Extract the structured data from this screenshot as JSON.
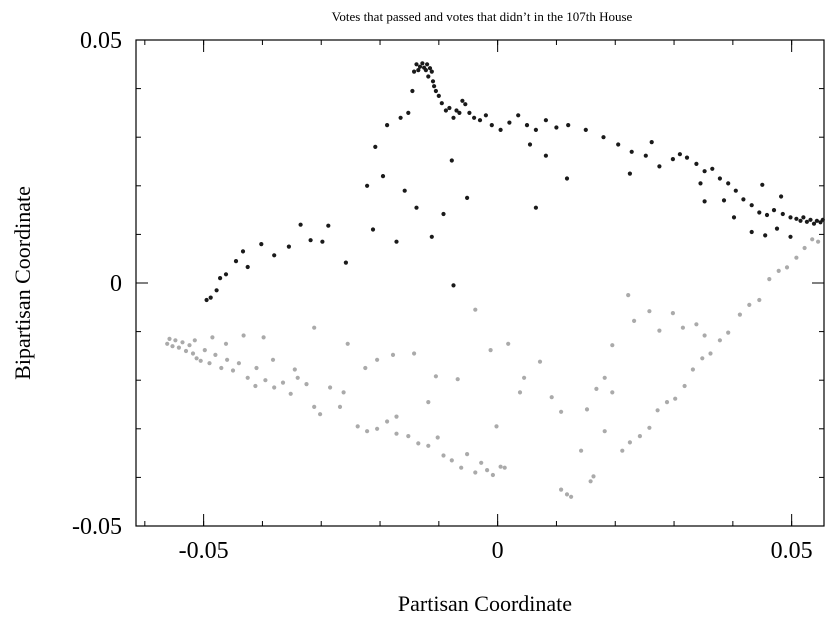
{
  "chart_data": {
    "type": "scatter",
    "title": "Votes that passed and votes that didn’t in the 107th House",
    "xlabel": "Partisan Coordinate",
    "ylabel": "Bipartisan Coordinate",
    "xlim": [
      -0.0615,
      0.0555
    ],
    "ylim": [
      -0.05,
      0.05
    ],
    "x_ticks": [
      -0.05,
      0,
      0.05
    ],
    "x_tick_labels": [
      "-0.05",
      "0",
      "0.05"
    ],
    "y_ticks": [
      -0.05,
      0,
      0.05
    ],
    "y_tick_labels": [
      "-0.05",
      "0",
      "0.05"
    ],
    "grid": false,
    "legend": false,
    "series": [
      {
        "color": "#1a1a1a",
        "points": [
          [
            -0.0495,
            -0.0035
          ],
          [
            -0.0488,
            -0.003
          ],
          [
            -0.0478,
            -0.0015
          ],
          [
            -0.0472,
            0.001
          ],
          [
            -0.0462,
            0.0018
          ],
          [
            -0.0445,
            0.0045
          ],
          [
            -0.0433,
            0.0065
          ],
          [
            -0.0425,
            0.0033
          ],
          [
            -0.0402,
            0.008
          ],
          [
            -0.038,
            0.0057
          ],
          [
            -0.0355,
            0.0075
          ],
          [
            -0.0335,
            0.012
          ],
          [
            -0.0318,
            0.0088
          ],
          [
            -0.0298,
            0.0085
          ],
          [
            -0.0288,
            0.0118
          ],
          [
            -0.0258,
            0.0042
          ],
          [
            -0.0222,
            0.02
          ],
          [
            -0.0208,
            0.028
          ],
          [
            -0.0195,
            0.022
          ],
          [
            -0.0188,
            0.0325
          ],
          [
            -0.0165,
            0.034
          ],
          [
            -0.0152,
            0.035
          ],
          [
            -0.0145,
            0.0395
          ],
          [
            -0.0142,
            0.0435
          ],
          [
            -0.0138,
            0.045
          ],
          [
            -0.0135,
            0.0438
          ],
          [
            -0.0132,
            0.0445
          ],
          [
            -0.0128,
            0.0452
          ],
          [
            -0.0125,
            0.0443
          ],
          [
            -0.0122,
            0.0438
          ],
          [
            -0.012,
            0.045
          ],
          [
            -0.0118,
            0.0425
          ],
          [
            -0.0115,
            0.0442
          ],
          [
            -0.0112,
            0.0435
          ],
          [
            -0.011,
            0.0415
          ],
          [
            -0.0108,
            0.0405
          ],
          [
            -0.0105,
            0.0395
          ],
          [
            -0.01,
            0.0385
          ],
          [
            -0.0095,
            0.037
          ],
          [
            -0.0088,
            0.0355
          ],
          [
            -0.0082,
            0.036
          ],
          [
            -0.0075,
            0.034
          ],
          [
            -0.007,
            0.0355
          ],
          [
            -0.0065,
            0.035
          ],
          [
            -0.006,
            0.0375
          ],
          [
            -0.0055,
            0.0368
          ],
          [
            -0.0048,
            0.035
          ],
          [
            -0.004,
            0.034
          ],
          [
            -0.003,
            0.0335
          ],
          [
            -0.002,
            0.0345
          ],
          [
            -0.001,
            0.0325
          ],
          [
            0.0005,
            0.0315
          ],
          [
            0.002,
            0.033
          ],
          [
            0.0035,
            0.0345
          ],
          [
            0.005,
            0.0325
          ],
          [
            0.0065,
            0.0315
          ],
          [
            0.0082,
            0.0335
          ],
          [
            0.01,
            0.032
          ],
          [
            0.012,
            0.0325
          ],
          [
            0.015,
            0.0315
          ],
          [
            0.018,
            0.03
          ],
          [
            0.0205,
            0.0285
          ],
          [
            0.0228,
            0.027
          ],
          [
            0.0252,
            0.0262
          ],
          [
            0.0275,
            0.024
          ],
          [
            0.0298,
            0.0255
          ],
          [
            0.031,
            0.0265
          ],
          [
            0.0322,
            0.0258
          ],
          [
            0.0338,
            0.0245
          ],
          [
            0.0352,
            0.023
          ],
          [
            0.0365,
            0.0235
          ],
          [
            0.0378,
            0.0215
          ],
          [
            0.0392,
            0.0205
          ],
          [
            0.0405,
            0.019
          ],
          [
            0.0418,
            0.0172
          ],
          [
            0.0432,
            0.016
          ],
          [
            0.0445,
            0.0145
          ],
          [
            0.0458,
            0.014
          ],
          [
            0.047,
            0.015
          ],
          [
            0.0485,
            0.0142
          ],
          [
            0.0498,
            0.0135
          ],
          [
            0.0508,
            0.0132
          ],
          [
            0.0515,
            0.0128
          ],
          [
            0.052,
            0.0135
          ],
          [
            0.0526,
            0.0126
          ],
          [
            0.0532,
            0.013
          ],
          [
            0.0538,
            0.0122
          ],
          [
            0.0543,
            0.0128
          ],
          [
            0.0549,
            0.0125
          ],
          [
            0.0553,
            0.013
          ],
          [
            -0.0212,
            0.011
          ],
          [
            -0.0172,
            0.0085
          ],
          [
            -0.0138,
            0.0155
          ],
          [
            -0.0112,
            0.0095
          ],
          [
            -0.0052,
            0.0175
          ],
          [
            -0.0078,
            0.0252
          ],
          [
            -0.0092,
            0.0142
          ],
          [
            -0.0158,
            0.019
          ],
          [
            -0.0075,
            -0.0005
          ],
          [
            0.0065,
            0.0155
          ],
          [
            0.0118,
            0.0215
          ],
          [
            0.0055,
            0.0285
          ],
          [
            0.0082,
            0.0262
          ],
          [
            0.0225,
            0.0225
          ],
          [
            0.0262,
            0.029
          ],
          [
            0.0345,
            0.0205
          ],
          [
            0.0385,
            0.017
          ],
          [
            0.0402,
            0.0135
          ],
          [
            0.0432,
            0.0105
          ],
          [
            0.0455,
            0.0098
          ],
          [
            0.0475,
            0.0112
          ],
          [
            0.0498,
            0.0095
          ],
          [
            0.0482,
            0.0178
          ],
          [
            0.045,
            0.0202
          ],
          [
            0.0352,
            0.0168
          ]
        ]
      },
      {
        "color": "#aaaaaa",
        "points": [
          [
            -0.0562,
            -0.0125
          ],
          [
            -0.0558,
            -0.0115
          ],
          [
            -0.0553,
            -0.013
          ],
          [
            -0.0548,
            -0.0118
          ],
          [
            -0.0542,
            -0.0133
          ],
          [
            -0.0536,
            -0.0122
          ],
          [
            -0.053,
            -0.014
          ],
          [
            -0.0524,
            -0.0128
          ],
          [
            -0.0518,
            -0.0145
          ],
          [
            -0.0512,
            -0.0155
          ],
          [
            -0.0505,
            -0.016
          ],
          [
            -0.0498,
            -0.0138
          ],
          [
            -0.049,
            -0.0165
          ],
          [
            -0.048,
            -0.0148
          ],
          [
            -0.047,
            -0.0175
          ],
          [
            -0.046,
            -0.0158
          ],
          [
            -0.045,
            -0.018
          ],
          [
            -0.044,
            -0.0165
          ],
          [
            -0.0425,
            -0.0195
          ],
          [
            -0.041,
            -0.0175
          ],
          [
            -0.0395,
            -0.02
          ],
          [
            -0.038,
            -0.0215
          ],
          [
            -0.0365,
            -0.0205
          ],
          [
            -0.0352,
            -0.0228
          ],
          [
            -0.034,
            -0.0195
          ],
          [
            -0.0325,
            -0.0208
          ],
          [
            -0.0312,
            -0.0255
          ],
          [
            -0.0302,
            -0.027
          ],
          [
            -0.0285,
            -0.0215
          ],
          [
            -0.0262,
            -0.0225
          ],
          [
            -0.0238,
            -0.0295
          ],
          [
            -0.0222,
            -0.0305
          ],
          [
            -0.0205,
            -0.03
          ],
          [
            -0.0188,
            -0.0285
          ],
          [
            -0.0172,
            -0.031
          ],
          [
            -0.0152,
            -0.0315
          ],
          [
            -0.0135,
            -0.033
          ],
          [
            -0.0118,
            -0.0335
          ],
          [
            -0.0102,
            -0.0318
          ],
          [
            -0.0092,
            -0.0355
          ],
          [
            -0.0078,
            -0.0365
          ],
          [
            -0.0062,
            -0.038
          ],
          [
            -0.0052,
            -0.0352
          ],
          [
            -0.0038,
            -0.039
          ],
          [
            -0.0028,
            -0.037
          ],
          [
            -0.0018,
            -0.0385
          ],
          [
            -0.0008,
            -0.0395
          ],
          [
            0.0005,
            -0.0378
          ],
          [
            0.0012,
            -0.038
          ],
          [
            0.0108,
            -0.0425
          ],
          [
            0.0118,
            -0.0435
          ],
          [
            0.0125,
            -0.044
          ],
          [
            0.0158,
            -0.0408
          ],
          [
            0.0163,
            -0.0398
          ],
          [
            0.0152,
            -0.026
          ],
          [
            0.0168,
            -0.0218
          ],
          [
            0.0182,
            -0.0195
          ],
          [
            0.0195,
            -0.0225
          ],
          [
            0.0212,
            -0.0345
          ],
          [
            0.0225,
            -0.0328
          ],
          [
            0.0242,
            -0.0315
          ],
          [
            0.0258,
            -0.0298
          ],
          [
            0.0272,
            -0.0262
          ],
          [
            0.0288,
            -0.0245
          ],
          [
            0.0302,
            -0.0238
          ],
          [
            0.0318,
            -0.0212
          ],
          [
            0.0332,
            -0.0178
          ],
          [
            0.0348,
            -0.0155
          ],
          [
            0.0362,
            -0.0145
          ],
          [
            0.0378,
            -0.0118
          ],
          [
            0.0392,
            -0.0102
          ],
          [
            0.0412,
            -0.0065
          ],
          [
            0.0428,
            -0.0045
          ],
          [
            0.0445,
            -0.0035
          ],
          [
            0.0462,
            0.0008
          ],
          [
            0.0478,
            0.0025
          ],
          [
            0.0492,
            0.0032
          ],
          [
            0.0508,
            0.0052
          ],
          [
            0.0522,
            0.0072
          ],
          [
            0.0535,
            0.009
          ],
          [
            0.0545,
            0.0085
          ],
          [
            -0.0255,
            -0.0125
          ],
          [
            -0.0225,
            -0.0175
          ],
          [
            -0.0205,
            -0.0158
          ],
          [
            -0.0178,
            -0.0148
          ],
          [
            -0.0142,
            -0.0145
          ],
          [
            -0.0105,
            -0.0192
          ],
          [
            -0.0068,
            -0.0198
          ],
          [
            -0.0038,
            -0.0055
          ],
          [
            -0.0012,
            -0.0138
          ],
          [
            0.0018,
            -0.0125
          ],
          [
            0.0045,
            -0.0195
          ],
          [
            0.0072,
            -0.0162
          ],
          [
            0.0092,
            -0.0235
          ],
          [
            0.0108,
            -0.0265
          ],
          [
            0.0195,
            -0.0128
          ],
          [
            0.0232,
            -0.0078
          ],
          [
            0.0258,
            -0.0058
          ],
          [
            0.0275,
            -0.0098
          ],
          [
            0.0298,
            -0.0062
          ],
          [
            0.0315,
            -0.0092
          ],
          [
            0.0338,
            -0.0085
          ],
          [
            0.0352,
            -0.0108
          ],
          [
            0.0222,
            -0.0025
          ],
          [
            -0.0312,
            -0.0092
          ],
          [
            -0.0398,
            -0.0112
          ],
          [
            -0.0432,
            -0.0108
          ],
          [
            -0.0462,
            -0.0125
          ],
          [
            -0.0485,
            -0.0112
          ],
          [
            -0.0515,
            -0.0118
          ],
          [
            -0.0382,
            -0.0158
          ],
          [
            -0.0345,
            -0.0178
          ],
          [
            -0.0412,
            -0.0212
          ],
          [
            -0.0268,
            -0.0255
          ],
          [
            -0.0172,
            -0.0275
          ],
          [
            -0.0118,
            -0.0245
          ],
          [
            -0.0002,
            -0.0295
          ],
          [
            0.0038,
            -0.0225
          ],
          [
            0.0142,
            -0.0345
          ],
          [
            0.0182,
            -0.0305
          ]
        ]
      }
    ]
  }
}
